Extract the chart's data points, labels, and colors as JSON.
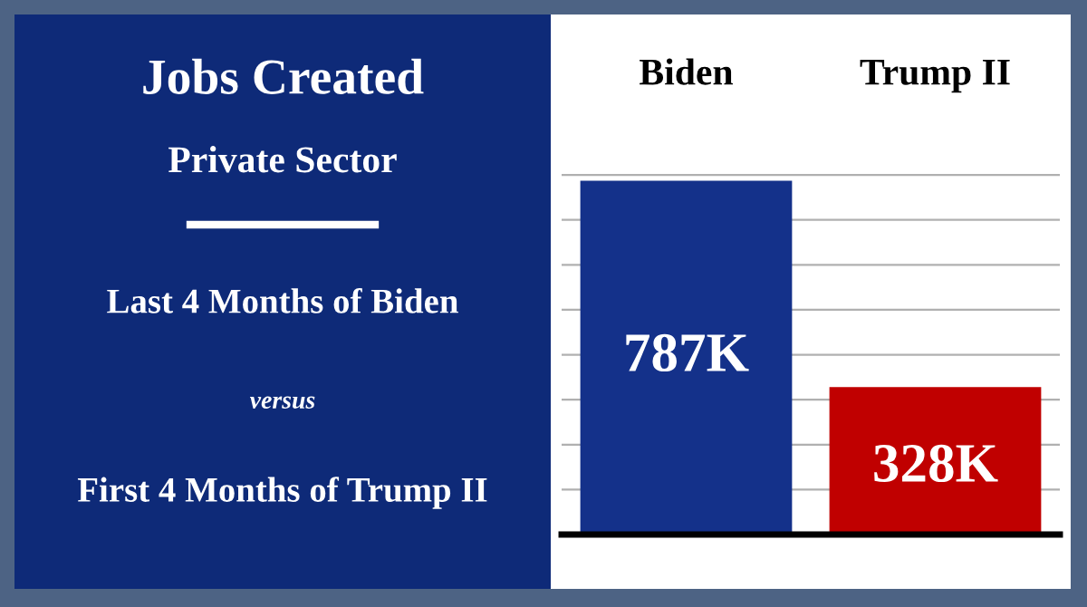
{
  "chart_data": {
    "type": "bar",
    "title": "Jobs Created",
    "subtitle": "Private Sector",
    "annotations": [
      "Last 4 Months of Biden",
      "versus",
      "First 4 Months of Trump II"
    ],
    "categories": [
      "Biden",
      "Trump II"
    ],
    "values": [
      787,
      328
    ],
    "colors": [
      "#14318a",
      "#c00000"
    ],
    "value_labels": [
      "787K",
      "328K"
    ],
    "yticks": [
      {
        "value": 100,
        "label": null
      },
      {
        "value": 200,
        "label": null
      },
      {
        "value": 300,
        "label": null
      },
      {
        "value": 400,
        "label": null
      },
      {
        "value": 500,
        "label": null
      },
      {
        "value": 600,
        "label": null
      },
      {
        "value": 700,
        "label": null
      },
      {
        "value": 800,
        "label": null
      }
    ],
    "grid": "y"
  }
}
